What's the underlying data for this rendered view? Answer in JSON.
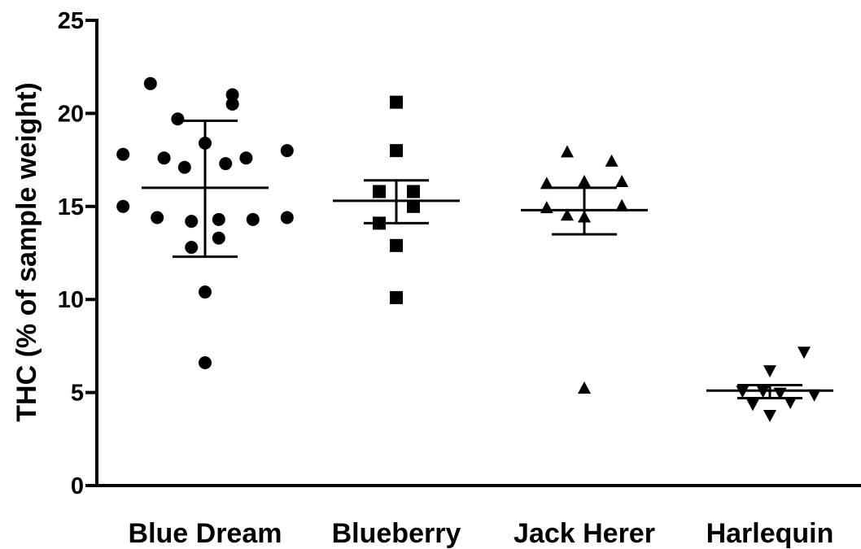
{
  "chart_data": {
    "type": "scatter",
    "ylabel": "THC (% of sample weight)",
    "xlabel": "",
    "ylim": [
      0,
      25
    ],
    "yticks": [
      0,
      5,
      10,
      15,
      20,
      25
    ],
    "grid": false,
    "categories": [
      "Blue Dream",
      "Blueberry",
      "Jack Herer",
      "Harlequin"
    ],
    "groups": [
      {
        "category": "Blue Dream",
        "marker": "circle",
        "mean": 16.0,
        "error_low": 12.3,
        "error_high": 19.6,
        "points": [
          {
            "offset": -0.16,
            "y": 21.6
          },
          {
            "offset": 0.08,
            "y": 21.0
          },
          {
            "offset": 0.08,
            "y": 20.5
          },
          {
            "offset": -0.08,
            "y": 19.7
          },
          {
            "offset": 0.0,
            "y": 18.4
          },
          {
            "offset": -0.24,
            "y": 17.8
          },
          {
            "offset": -0.12,
            "y": 17.6
          },
          {
            "offset": 0.12,
            "y": 17.6
          },
          {
            "offset": 0.24,
            "y": 18.0
          },
          {
            "offset": -0.06,
            "y": 17.1
          },
          {
            "offset": 0.06,
            "y": 17.3
          },
          {
            "offset": -0.24,
            "y": 15.0
          },
          {
            "offset": -0.14,
            "y": 14.4
          },
          {
            "offset": -0.04,
            "y": 14.2
          },
          {
            "offset": 0.04,
            "y": 14.3
          },
          {
            "offset": 0.14,
            "y": 14.3
          },
          {
            "offset": 0.24,
            "y": 14.4
          },
          {
            "offset": -0.04,
            "y": 12.8
          },
          {
            "offset": 0.04,
            "y": 13.3
          },
          {
            "offset": 0.0,
            "y": 10.4
          },
          {
            "offset": 0.0,
            "y": 6.6
          }
        ]
      },
      {
        "category": "Blueberry",
        "marker": "square",
        "mean": 15.3,
        "error_low": 14.1,
        "error_high": 16.4,
        "points": [
          {
            "offset": 0.0,
            "y": 20.6
          },
          {
            "offset": 0.0,
            "y": 18.0
          },
          {
            "offset": -0.05,
            "y": 15.8
          },
          {
            "offset": 0.05,
            "y": 15.8
          },
          {
            "offset": 0.05,
            "y": 15.0
          },
          {
            "offset": -0.05,
            "y": 14.1
          },
          {
            "offset": 0.0,
            "y": 12.9
          },
          {
            "offset": 0.0,
            "y": 10.1
          }
        ]
      },
      {
        "category": "Jack Herer",
        "marker": "triangle-up",
        "mean": 14.8,
        "error_low": 13.5,
        "error_high": 16.0,
        "points": [
          {
            "offset": -0.05,
            "y": 17.9
          },
          {
            "offset": 0.08,
            "y": 17.4
          },
          {
            "offset": -0.11,
            "y": 16.2
          },
          {
            "offset": 0.0,
            "y": 16.3
          },
          {
            "offset": 0.11,
            "y": 16.3
          },
          {
            "offset": -0.11,
            "y": 14.9
          },
          {
            "offset": 0.11,
            "y": 15.0
          },
          {
            "offset": 0.0,
            "y": 14.4
          },
          {
            "offset": -0.05,
            "y": 14.5
          },
          {
            "offset": 0.0,
            "y": 5.2
          }
        ]
      },
      {
        "category": "Harlequin",
        "marker": "triangle-down",
        "mean": 5.1,
        "error_low": 4.7,
        "error_high": 5.4,
        "points": [
          {
            "offset": 0.1,
            "y": 7.2
          },
          {
            "offset": 0.0,
            "y": 6.2
          },
          {
            "offset": -0.08,
            "y": 5.1
          },
          {
            "offset": -0.02,
            "y": 5.1
          },
          {
            "offset": 0.03,
            "y": 5.0
          },
          {
            "offset": 0.13,
            "y": 4.9
          },
          {
            "offset": -0.05,
            "y": 4.4
          },
          {
            "offset": 0.06,
            "y": 4.5
          },
          {
            "offset": 0.0,
            "y": 3.8
          }
        ]
      }
    ]
  }
}
